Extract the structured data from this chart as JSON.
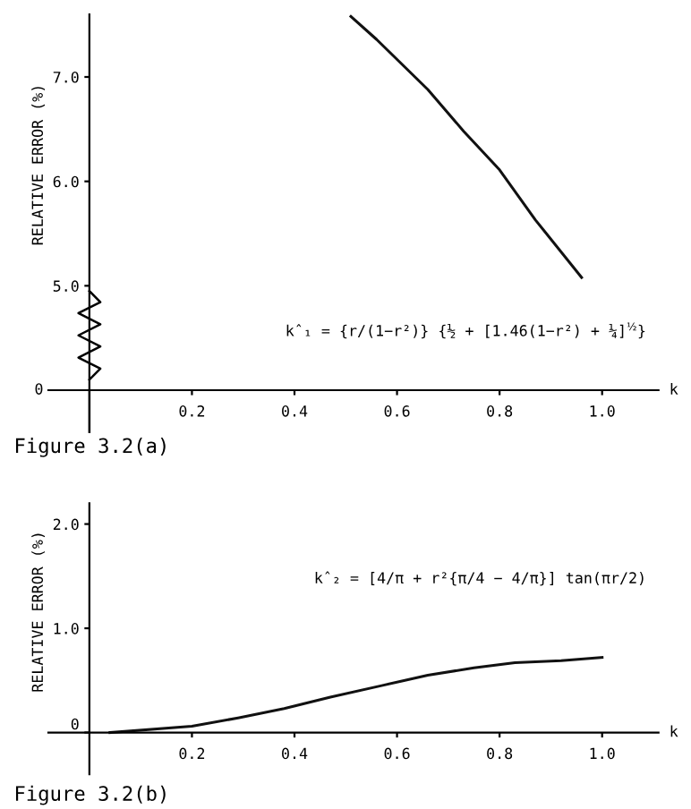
{
  "chart_data": [
    {
      "type": "line",
      "xlabel": "k",
      "ylabel": "RELATIVE ERROR (%)",
      "x": [
        0.51,
        0.56,
        0.66,
        0.73,
        0.8,
        0.87,
        0.96
      ],
      "values": [
        7.58,
        7.36,
        6.88,
        6.48,
        6.11,
        5.63,
        5.08
      ],
      "color": "#111111",
      "xlim": [
        -0.08,
        1.11
      ],
      "ylim": [
        4.0,
        7.6
      ],
      "xticks": [
        0.2,
        0.4,
        0.6,
        0.8,
        {
          "value": 1.0,
          "label": "1.0"
        }
      ],
      "yticks": [
        {
          "value": 5,
          "label": "5.0"
        },
        {
          "value": 6,
          "label": "6.0"
        },
        {
          "value": 7,
          "label": "7.0"
        }
      ],
      "annotations": [
        "k̂₁ = {r/(1−r²)} {½ + [1.46(1−r²) + ¼]$^{½}$}",
        "0",
        "Figure 3.2(a)"
      ],
      "marker": "none",
      "line_style": "solid"
    },
    {
      "type": "line",
      "xlabel": "k",
      "ylabel": "RELATIVE ERROR (%)",
      "x": [
        0.04,
        0.2,
        0.29,
        0.38,
        0.47,
        0.57,
        0.66,
        0.75,
        0.83,
        0.92,
        1.0
      ],
      "values": [
        0.0,
        0.06,
        0.14,
        0.23,
        0.34,
        0.45,
        0.55,
        0.62,
        0.67,
        0.69,
        0.72
      ],
      "color": "#111111",
      "xlim": [
        -0.08,
        1.11
      ],
      "ylim": [
        -0.4,
        2.2
      ],
      "xticks": [
        0.2,
        0.4,
        0.6,
        0.8,
        {
          "value": 1.0,
          "label": "1.0"
        }
      ],
      "yticks": [
        0,
        {
          "value": 1,
          "label": "1.0"
        },
        {
          "value": 2,
          "label": "2.0"
        }
      ],
      "annotations": [
        "k̂₂ = [4/π + r²{π/4 − 4/π}] tan(πr/2)",
        "Figure 3.2(b)"
      ],
      "marker": "none",
      "line_style": "solid"
    }
  ]
}
